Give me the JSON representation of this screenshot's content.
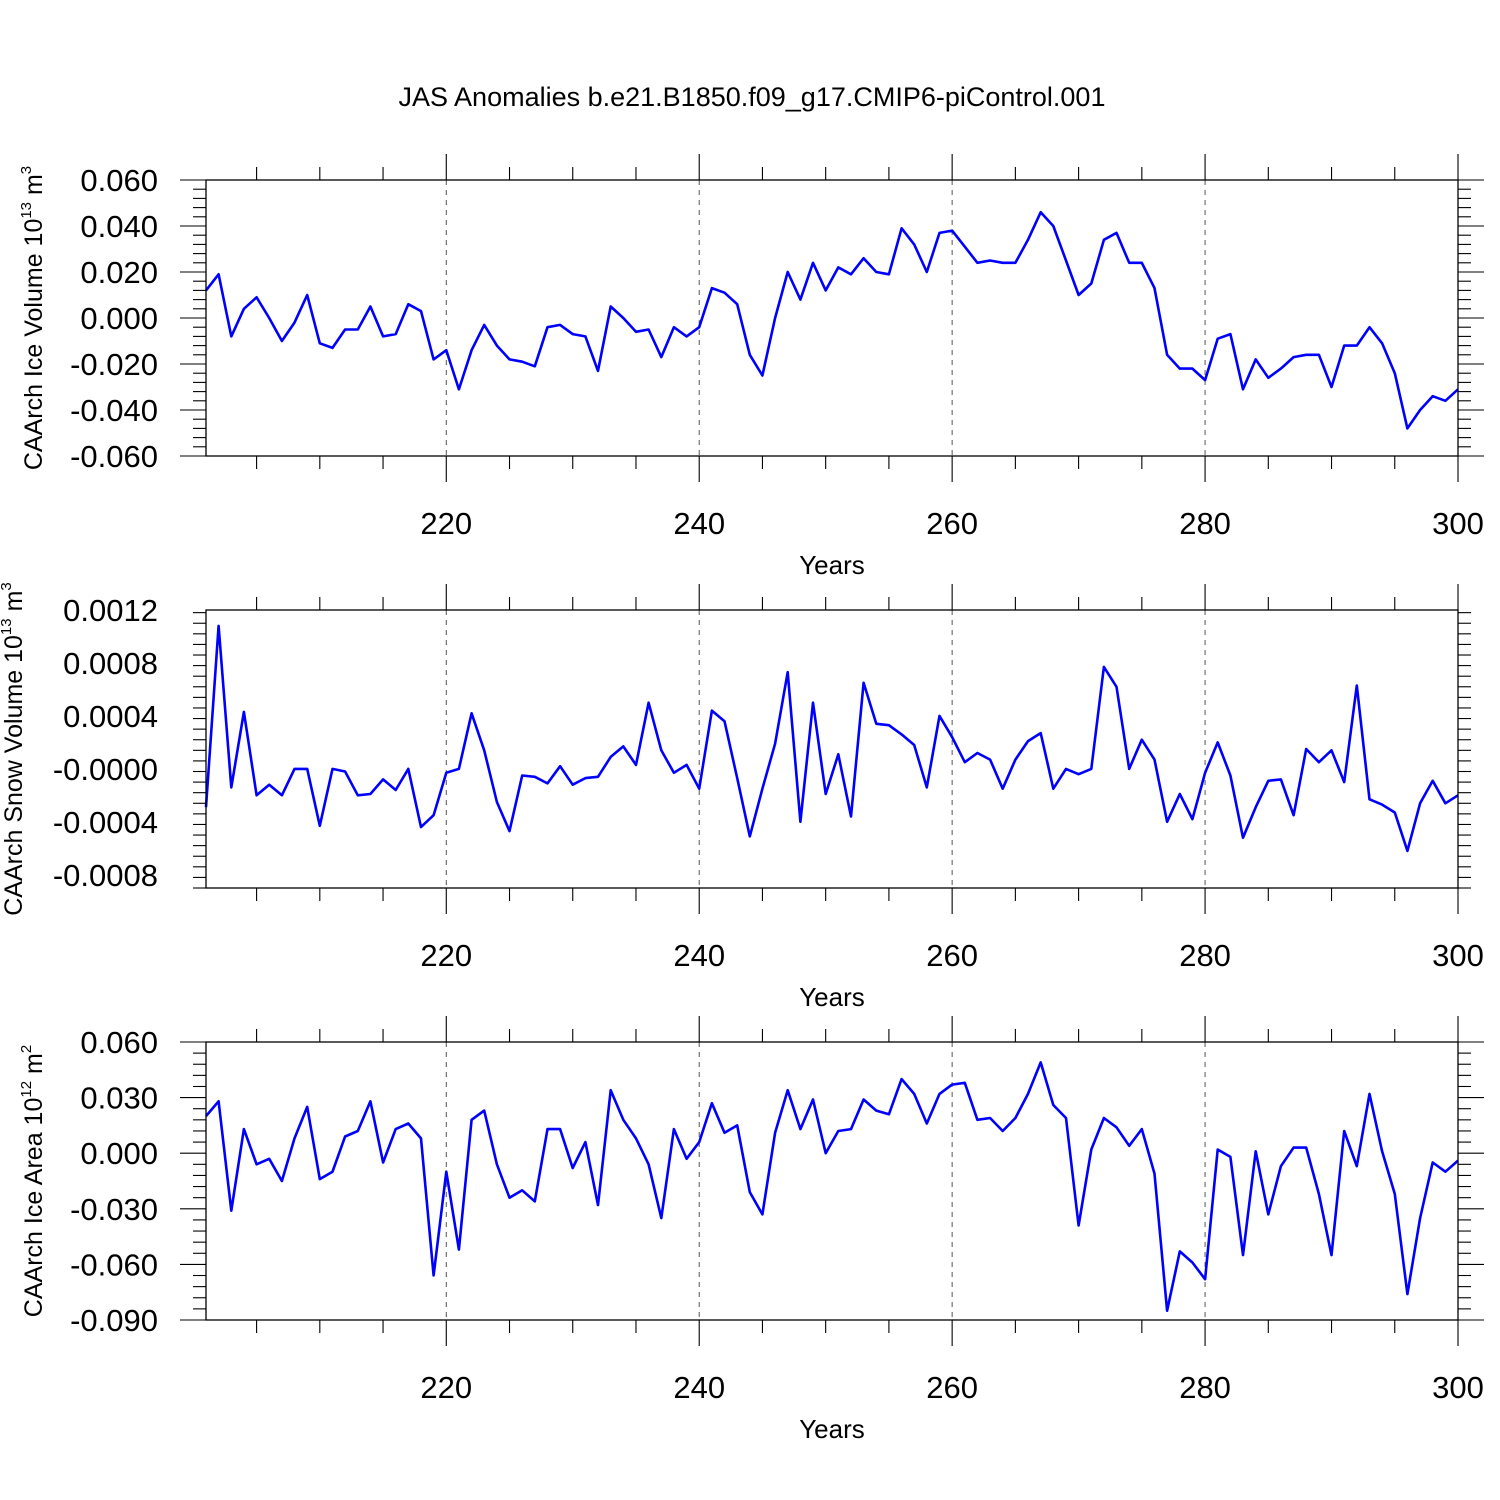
{
  "figure": {
    "title": "JAS Anomalies b.e21.B1850.f09_g17.CMIP6-piControl.001"
  },
  "chart_data": [
    {
      "type": "line",
      "title": "JAS Anomalies b.e21.B1850.f09_g17.CMIP6-piControl.001",
      "xlabel": "Years",
      "ylabel": "CAArch Ice Volume",
      "units": {
        "base": "10",
        "exp": "13",
        "unit": "m",
        "unit_exp": "3"
      },
      "xlim": [
        201,
        300
      ],
      "ylim": [
        -0.06,
        0.06
      ],
      "xticks": [
        220,
        240,
        260,
        280,
        300
      ],
      "xtick_labels": [
        "220",
        "240",
        "260",
        "280",
        "300"
      ],
      "yticks": [
        0.06,
        0.04,
        0.02,
        0.0,
        -0.02,
        -0.04,
        -0.06
      ],
      "ytick_labels": [
        "0.060",
        "0.040",
        "0.020",
        "0.000",
        "-0.020",
        "-0.040",
        "-0.060"
      ],
      "grid": "dashed vertical at major x ticks",
      "series": [
        {
          "name": "CAArch Ice Volume",
          "color": "#0000ff",
          "x_start": 201,
          "values": [
            0.012,
            0.019,
            -0.008,
            0.004,
            0.009,
            0.0,
            -0.01,
            -0.002,
            0.01,
            -0.011,
            -0.013,
            -0.005,
            -0.005,
            0.005,
            -0.008,
            -0.007,
            0.006,
            0.003,
            -0.018,
            -0.014,
            -0.031,
            -0.014,
            -0.003,
            -0.012,
            -0.018,
            -0.019,
            -0.021,
            -0.004,
            -0.003,
            -0.007,
            -0.008,
            -0.023,
            0.005,
            0.0,
            -0.006,
            -0.005,
            -0.017,
            -0.004,
            -0.008,
            -0.004,
            0.013,
            0.011,
            0.006,
            -0.016,
            -0.025,
            0.0,
            0.02,
            0.008,
            0.024,
            0.012,
            0.022,
            0.019,
            0.026,
            0.02,
            0.019,
            0.039,
            0.032,
            0.02,
            0.037,
            0.038,
            0.031,
            0.024,
            0.025,
            0.024,
            0.024,
            0.034,
            0.046,
            0.04,
            0.025,
            0.01,
            0.015,
            0.034,
            0.037,
            0.024,
            0.024,
            0.013,
            -0.016,
            -0.022,
            -0.022,
            -0.027,
            -0.009,
            -0.007,
            -0.031,
            -0.018,
            -0.026,
            -0.022,
            -0.017,
            -0.016,
            -0.016,
            -0.03,
            -0.012,
            -0.012,
            -0.004,
            -0.011,
            -0.024,
            -0.048,
            -0.04,
            -0.034,
            -0.036,
            -0.031
          ]
        }
      ]
    },
    {
      "type": "line",
      "xlabel": "Years",
      "ylabel": "CAArch Snow Volume",
      "units": {
        "base": "10",
        "exp": "13",
        "unit": "m",
        "unit_exp": "3"
      },
      "xlim": [
        201,
        300
      ],
      "ylim": [
        -0.0009,
        0.0012
      ],
      "xticks": [
        220,
        240,
        260,
        280,
        300
      ],
      "xtick_labels": [
        "220",
        "240",
        "260",
        "280",
        "300"
      ],
      "yticks": [
        0.0012,
        0.0008,
        0.0004,
        0.0,
        -0.0004,
        -0.0008
      ],
      "ytick_labels": [
        "0.0012",
        "0.0008",
        "0.0004",
        "-0.0000",
        "-0.0004",
        "-0.0008"
      ],
      "grid": "dashed vertical at major x ticks",
      "series": [
        {
          "name": "CAArch Snow Volume",
          "color": "#0000ff",
          "x_start": 201,
          "values": [
            -0.00029,
            0.00108,
            -0.00014,
            0.00043,
            -0.0002,
            -0.00012,
            -0.0002,
            0.0,
            0.0,
            -0.00043,
            0.0,
            -2e-05,
            -0.0002,
            -0.00019,
            -8e-05,
            -0.00016,
            0.0,
            -0.00044,
            -0.00035,
            -3e-05,
            0.0,
            0.00042,
            0.00014,
            -0.00025,
            -0.00047,
            -5e-05,
            -6e-05,
            -0.00011,
            2e-05,
            -0.00012,
            -7e-05,
            -6e-05,
            9e-05,
            0.00017,
            3e-05,
            0.0005,
            0.00014,
            -3e-05,
            3e-05,
            -0.00015,
            0.00044,
            0.00036,
            -7e-05,
            -0.00051,
            -0.00015,
            0.00019,
            0.00073,
            -0.0004,
            0.0005,
            -0.00019,
            0.00011,
            -0.00036,
            0.00065,
            0.00034,
            0.00033,
            0.00026,
            0.00018,
            -0.00014,
            0.0004,
            0.00024,
            5e-05,
            0.00012,
            7e-05,
            -0.00015,
            7e-05,
            0.00021,
            0.00027,
            -0.00015,
            0.0,
            -4e-05,
            0.0,
            0.00077,
            0.00062,
            0.0,
            0.00022,
            7e-05,
            -0.0004,
            -0.00019,
            -0.00038,
            -3e-05,
            0.0002,
            -5e-05,
            -0.00052,
            -0.00029,
            -9e-05,
            -8e-05,
            -0.00035,
            0.00015,
            5e-05,
            0.00014,
            -0.0001,
            0.00063,
            -0.00023,
            -0.00027,
            -0.00033,
            -0.00062,
            -0.00026,
            -9e-05,
            -0.00026,
            -0.0002
          ]
        }
      ]
    },
    {
      "type": "line",
      "xlabel": "Years",
      "ylabel": "CAArch Ice Area",
      "units": {
        "base": "10",
        "exp": "12",
        "unit": "m",
        "unit_exp": "2"
      },
      "xlim": [
        201,
        300
      ],
      "ylim": [
        -0.09,
        0.06
      ],
      "xticks": [
        220,
        240,
        260,
        280,
        300
      ],
      "xtick_labels": [
        "220",
        "240",
        "260",
        "280",
        "300"
      ],
      "yticks": [
        0.06,
        0.03,
        0.0,
        -0.03,
        -0.06,
        -0.09
      ],
      "ytick_labels": [
        "0.060",
        "0.030",
        "0.000",
        "-0.030",
        "-0.060",
        "-0.090"
      ],
      "grid": "dashed vertical at major x ticks",
      "series": [
        {
          "name": "CAArch Ice Area",
          "color": "#0000ff",
          "x_start": 201,
          "values": [
            0.02,
            0.028,
            -0.031,
            0.013,
            -0.006,
            -0.003,
            -0.015,
            0.008,
            0.025,
            -0.014,
            -0.01,
            0.009,
            0.012,
            0.028,
            -0.005,
            0.013,
            0.016,
            0.008,
            -0.066,
            -0.01,
            -0.052,
            0.018,
            0.023,
            -0.006,
            -0.024,
            -0.02,
            -0.026,
            0.013,
            0.013,
            -0.008,
            0.006,
            -0.028,
            0.034,
            0.018,
            0.008,
            -0.006,
            -0.035,
            0.013,
            -0.003,
            0.006,
            0.027,
            0.011,
            0.015,
            -0.021,
            -0.033,
            0.011,
            0.034,
            0.013,
            0.029,
            0.0,
            0.012,
            0.013,
            0.029,
            0.023,
            0.021,
            0.04,
            0.032,
            0.016,
            0.032,
            0.037,
            0.038,
            0.018,
            0.019,
            0.012,
            0.019,
            0.032,
            0.049,
            0.026,
            0.019,
            -0.039,
            0.002,
            0.019,
            0.014,
            0.004,
            0.013,
            -0.011,
            -0.085,
            -0.053,
            -0.059,
            -0.068,
            0.002,
            -0.002,
            -0.055,
            0.001,
            -0.033,
            -0.007,
            0.003,
            0.003,
            -0.022,
            -0.055,
            0.012,
            -0.007,
            0.032,
            0.001,
            -0.022,
            -0.076,
            -0.035,
            -0.005,
            -0.01,
            -0.004
          ]
        }
      ]
    }
  ]
}
